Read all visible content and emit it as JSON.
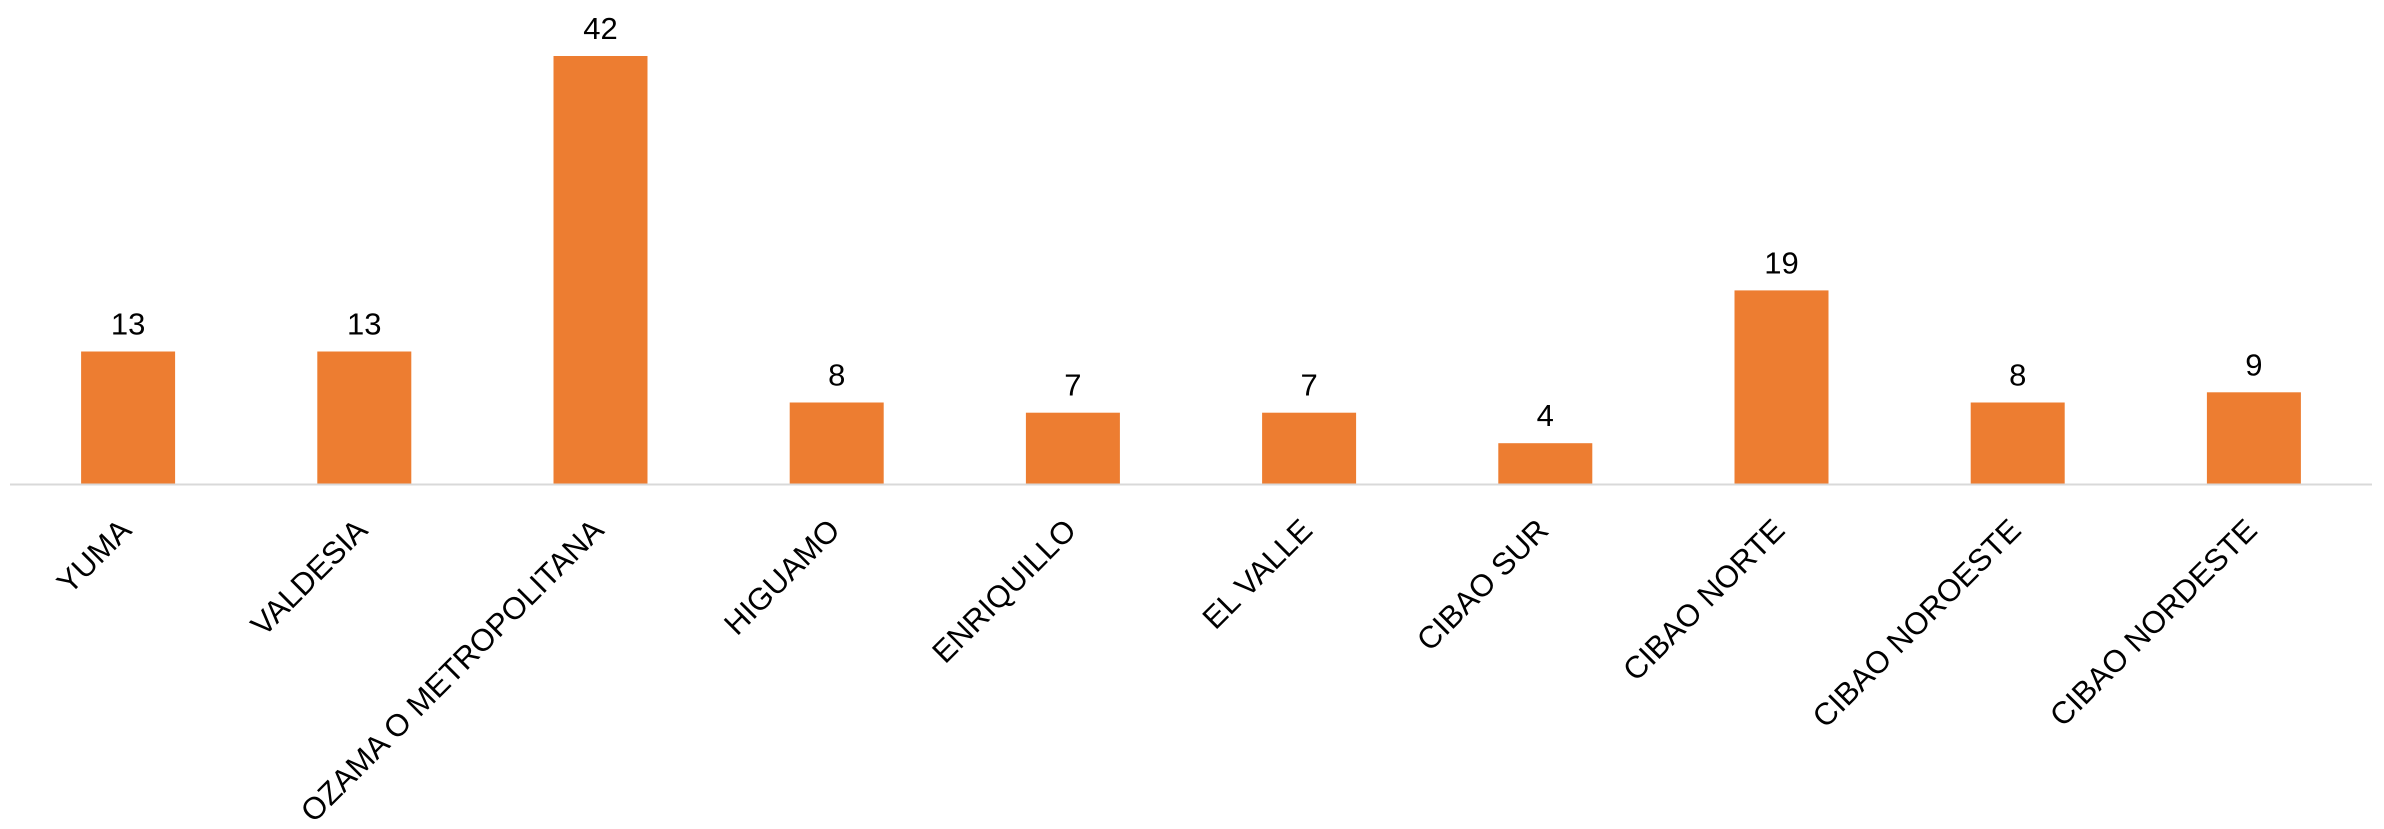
{
  "chart_data": {
    "type": "bar",
    "categories": [
      "YUMA",
      "VALDESIA",
      "OZAMA O METROPOLITANA",
      "HIGUAMO",
      "ENRIQUILLO",
      "EL VALLE",
      "CIBAO SUR",
      "CIBAO NORTE",
      "CIBAO NOROESTE",
      "CIBAO NORDESTE"
    ],
    "values": [
      13,
      13,
      42,
      8,
      7,
      7,
      4,
      19,
      8,
      9
    ],
    "data_labels": [
      "13",
      "13",
      "42",
      "8",
      "7",
      "7",
      "4",
      "19",
      "8",
      "9"
    ],
    "title": "",
    "xlabel": "",
    "ylabel": "",
    "ylim": [
      0,
      42
    ],
    "grid": false,
    "legend": "none",
    "bar_color": "#ED7D31",
    "axis_color": "#D9D9D9"
  }
}
